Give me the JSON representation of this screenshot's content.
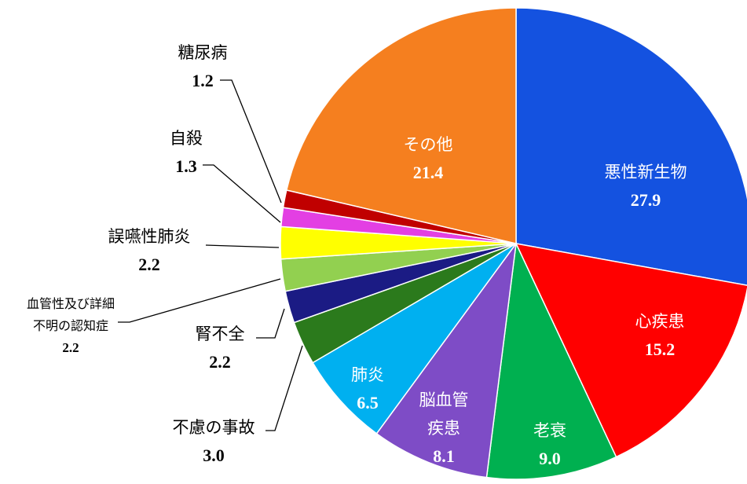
{
  "chart_data": {
    "type": "pie",
    "categories": [
      "悪性新生物",
      "心疾患",
      "老衰",
      "脳血管\n疾患",
      "肺炎",
      "不慮の事故",
      "腎不全",
      "血管性及び詳細\n不明の認知症",
      "誤嚥性肺炎",
      "自殺",
      "糖尿病",
      "その他"
    ],
    "values": [
      27.9,
      15.2,
      9.0,
      8.1,
      6.5,
      3.0,
      2.2,
      2.2,
      2.2,
      1.3,
      1.2,
      21.4
    ],
    "value_labels": [
      "27.9",
      "15.2",
      "9.0",
      "8.1",
      "6.5",
      "3.0",
      "2.2",
      "2.2",
      "2.2",
      "1.3",
      "1.2",
      "21.4"
    ],
    "colors": [
      "#1452e0",
      "#ff0000",
      "#00b050",
      "#7e4cc6",
      "#00b0f0",
      "#2b7a1c",
      "#1b1b84",
      "#92d050",
      "#ffff00",
      "#e33fe3",
      "#c00000",
      "#f57f1f"
    ]
  }
}
